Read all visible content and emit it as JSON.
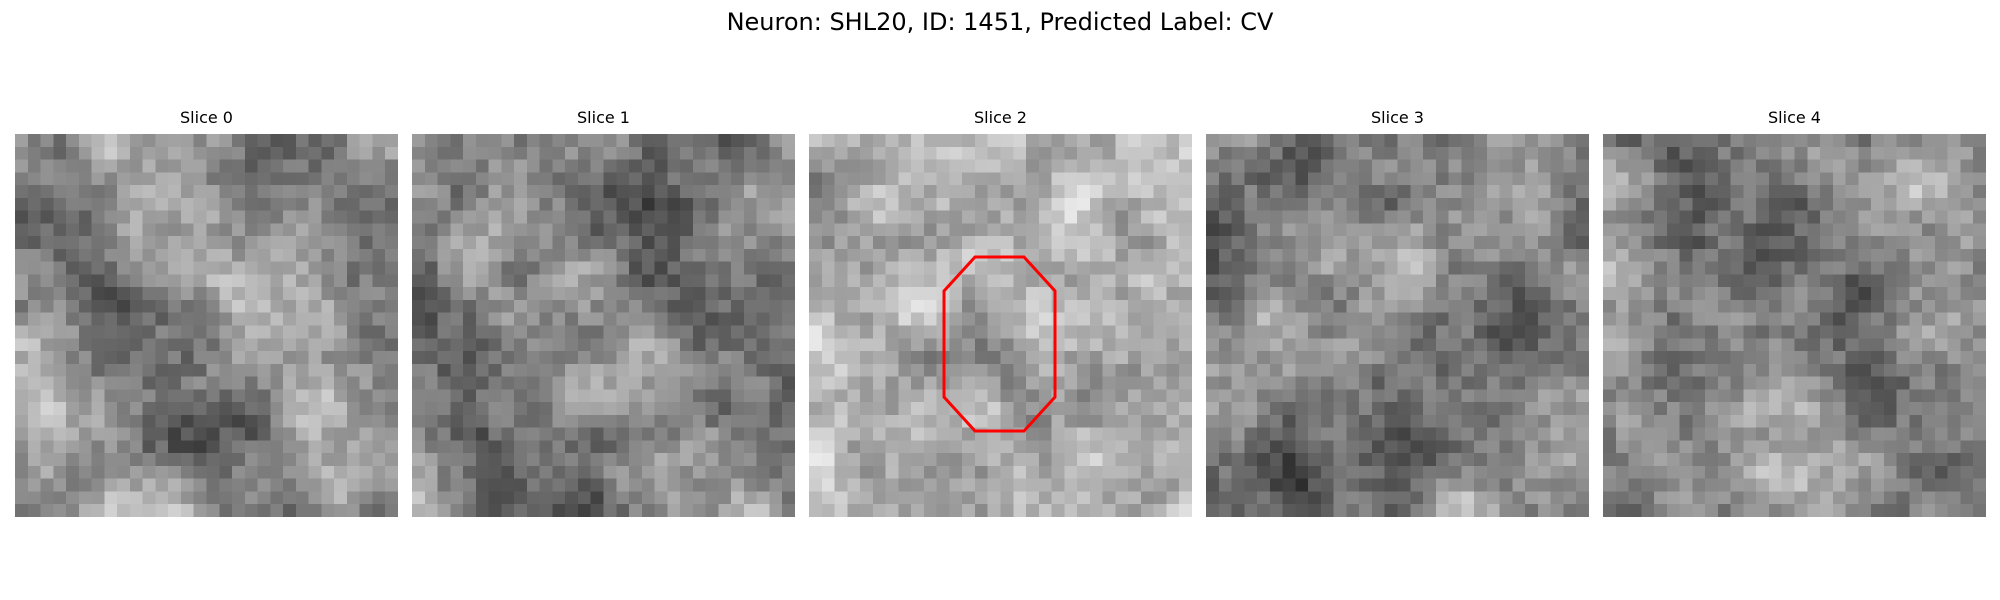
{
  "figure": {
    "title": "Neuron: SHL20, ID: 1451, Predicted Label: CV"
  },
  "colormap": "grayscale",
  "grid_resolution": [
    30,
    30
  ],
  "roi_outline": {
    "panel": "Slice 2",
    "shape": "octagon",
    "color": "#ff0000"
  },
  "panels": [
    {
      "title": "Slice 0",
      "image": "grayscale-noise-slice"
    },
    {
      "title": "Slice 1",
      "image": "grayscale-noise-slice"
    },
    {
      "title": "Slice 2",
      "image": "grayscale-noise-slice"
    },
    {
      "title": "Slice 3",
      "image": "grayscale-noise-slice"
    },
    {
      "title": "Slice 4",
      "image": "grayscale-noise-slice"
    }
  ]
}
